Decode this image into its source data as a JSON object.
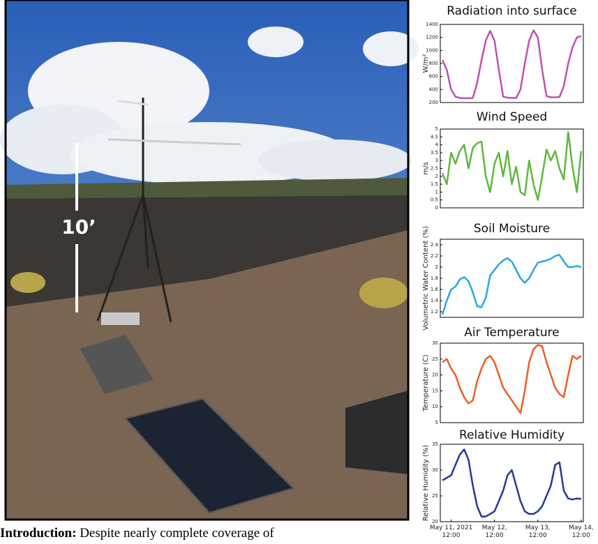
{
  "photo": {
    "height_label": "10’"
  },
  "caption": {
    "label": "Introduction:",
    "text": "Despite nearly complete coverage of"
  },
  "chart_data": [
    {
      "type": "line",
      "title": "Radiation into surface",
      "ylabel": "W/m²",
      "color": "#c24fae",
      "x": [
        -0.2,
        -0.1,
        0,
        0.1,
        0.2,
        0.3,
        0.4,
        0.5,
        0.6,
        0.7,
        0.8,
        0.9,
        1,
        1.1,
        1.2,
        1.3,
        1.4,
        1.5,
        1.6,
        1.7,
        1.8,
        1.9,
        2,
        2.1,
        2.2,
        2.3,
        2.4,
        2.5,
        2.6,
        2.7,
        2.8,
        2.9,
        3
      ],
      "values": [
        850,
        700,
        400,
        290,
        270,
        265,
        265,
        270,
        500,
        850,
        1150,
        1300,
        1150,
        700,
        290,
        275,
        270,
        270,
        400,
        800,
        1150,
        1310,
        1200,
        700,
        300,
        280,
        280,
        285,
        450,
        800,
        1050,
        1200,
        1220
      ],
      "xlim": [
        -0.25,
        3.05
      ],
      "ylim": [
        200,
        1400
      ],
      "yticks": [
        200,
        400,
        600,
        800,
        1000,
        1200,
        1400
      ]
    },
    {
      "type": "line",
      "title": "Wind Speed",
      "ylabel": "m/s",
      "color": "#5db83b",
      "x": [
        -0.2,
        -0.1,
        0,
        0.1,
        0.2,
        0.3,
        0.4,
        0.5,
        0.6,
        0.7,
        0.8,
        0.9,
        1,
        1.1,
        1.2,
        1.3,
        1.4,
        1.5,
        1.6,
        1.7,
        1.8,
        1.9,
        2,
        2.1,
        2.2,
        2.3,
        2.4,
        2.5,
        2.6,
        2.7,
        2.8,
        2.9,
        3
      ],
      "values": [
        2.2,
        1.5,
        3.5,
        2.8,
        3.6,
        4.0,
        2.5,
        3.8,
        4.1,
        4.2,
        2.0,
        1.0,
        2.8,
        3.5,
        2.0,
        3.6,
        1.5,
        2.6,
        1.0,
        0.8,
        3.0,
        1.5,
        0.5,
        2.0,
        3.7,
        3.0,
        3.6,
        2.5,
        1.8,
        4.8,
        2.6,
        1.0,
        3.6
      ],
      "xlim": [
        -0.25,
        3.05
      ],
      "ylim": [
        0,
        5
      ],
      "yticks": [
        0,
        0.5,
        1,
        1.5,
        2,
        2.5,
        3,
        3.5,
        4,
        4.5,
        5
      ]
    },
    {
      "type": "line",
      "title": "Soil Moisture",
      "ylabel": "Volumetric Water Content (%)",
      "color": "#2ba6e0",
      "x": [
        -0.2,
        -0.1,
        0,
        0.1,
        0.2,
        0.3,
        0.4,
        0.5,
        0.6,
        0.7,
        0.8,
        0.9,
        1,
        1.1,
        1.2,
        1.3,
        1.4,
        1.5,
        1.6,
        1.7,
        1.8,
        1.9,
        2,
        2.1,
        2.2,
        2.3,
        2.4,
        2.5,
        2.6,
        2.7,
        2.8,
        2.9,
        3
      ],
      "values": [
        1.15,
        1.4,
        1.6,
        1.65,
        1.78,
        1.82,
        1.75,
        1.55,
        1.3,
        1.28,
        1.45,
        1.85,
        1.95,
        2.05,
        2.12,
        2.16,
        2.1,
        1.95,
        1.8,
        1.72,
        1.8,
        1.95,
        2.08,
        2.1,
        2.12,
        2.15,
        2.2,
        2.22,
        2.1,
        2.0,
        2.0,
        2.02,
        2.0
      ],
      "xlim": [
        -0.25,
        3.05
      ],
      "ylim": [
        1.1,
        2.5
      ],
      "yticks": [
        1.2,
        1.4,
        1.6,
        1.8,
        2,
        2.2,
        2.4
      ]
    },
    {
      "type": "line",
      "title": "Air Temperature",
      "ylabel": "Temperature (C)",
      "color": "#ef5d22",
      "x": [
        -0.2,
        -0.1,
        0,
        0.1,
        0.2,
        0.3,
        0.4,
        0.5,
        0.6,
        0.7,
        0.8,
        0.9,
        1,
        1.1,
        1.2,
        1.3,
        1.4,
        1.5,
        1.6,
        1.7,
        1.8,
        1.9,
        2,
        2.1,
        2.2,
        2.3,
        2.4,
        2.5,
        2.6,
        2.7,
        2.8,
        2.9,
        3
      ],
      "values": [
        24,
        25,
        22,
        20,
        16,
        13,
        11,
        12,
        18,
        22,
        25,
        26,
        24,
        20,
        16,
        14,
        12,
        10,
        8,
        15,
        24,
        28,
        29.5,
        29,
        24,
        20,
        16,
        14,
        13,
        20,
        26,
        25,
        26
      ],
      "xlim": [
        -0.25,
        3.05
      ],
      "ylim": [
        5,
        30
      ],
      "yticks": [
        5,
        10,
        15,
        20,
        25,
        30
      ]
    },
    {
      "type": "line",
      "title": "Relative Humidity",
      "ylabel": "Relative Humidity (%)",
      "color": "#23389a",
      "x": [
        -0.2,
        -0.1,
        0,
        0.1,
        0.2,
        0.3,
        0.4,
        0.5,
        0.6,
        0.7,
        0.8,
        0.9,
        1,
        1.1,
        1.2,
        1.3,
        1.4,
        1.5,
        1.6,
        1.7,
        1.8,
        1.9,
        2,
        2.1,
        2.2,
        2.3,
        2.4,
        2.5,
        2.6,
        2.7,
        2.8,
        2.9,
        3
      ],
      "values": [
        28,
        28.5,
        29,
        31,
        33,
        34,
        32,
        27,
        23,
        21,
        21,
        21.5,
        22,
        24,
        26,
        29,
        30,
        27,
        24,
        22,
        21.5,
        21.5,
        22,
        23,
        25,
        27,
        31,
        31.5,
        26,
        24.5,
        24.3,
        24.5,
        24.4
      ],
      "xlim": [
        -0.25,
        3.05
      ],
      "ylim": [
        20,
        35
      ],
      "yticks": [
        20,
        25,
        30,
        35
      ],
      "xticks": [
        {
          "value": 0,
          "label": [
            "May 11, 2021",
            "12:00"
          ]
        },
        {
          "value": 1,
          "label": [
            "May 12,",
            "12:00"
          ]
        },
        {
          "value": 2,
          "label": [
            "May 13,",
            "12:00"
          ]
        },
        {
          "value": 3,
          "label": [
            "May 14,",
            "12:00"
          ]
        }
      ]
    }
  ]
}
